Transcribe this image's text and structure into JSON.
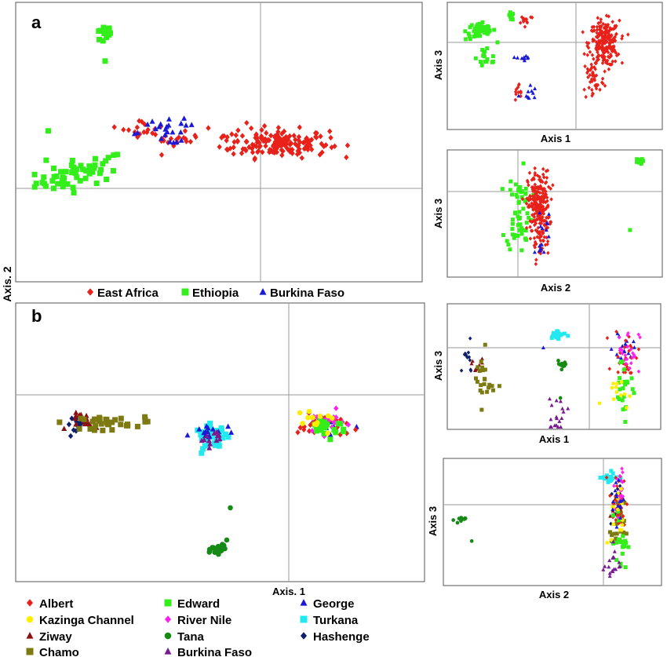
{
  "figure": {
    "panel_a_letter": "a",
    "panel_b_letter": "b",
    "shared_y_label": "Axis. 2",
    "panel_b_x_label": "Axis. 1"
  },
  "legend_a": [
    {
      "label": "East Africa",
      "color": "#e8211a",
      "marker": "diamond"
    },
    {
      "label": "Ethiopia",
      "color": "#33ee1a",
      "marker": "square"
    },
    {
      "label": "Burkina Faso",
      "color": "#1a1ad6",
      "marker": "triangle"
    }
  ],
  "legend_b": [
    {
      "label": "Albert",
      "color": "#e8211a",
      "marker": "diamond"
    },
    {
      "label": "Edward",
      "color": "#33ee1a",
      "marker": "square"
    },
    {
      "label": "George",
      "color": "#1a1ad6",
      "marker": "triangle"
    },
    {
      "label": "Kazinga Channel",
      "color": "#ffee00",
      "marker": "circle"
    },
    {
      "label": "River Nile",
      "color": "#ff22ee",
      "marker": "diamond"
    },
    {
      "label": "Turkana",
      "color": "#22e8f0",
      "marker": "square"
    },
    {
      "label": "Ziway",
      "color": "#8b1010",
      "marker": "triangle"
    },
    {
      "label": "Tana",
      "color": "#158a15",
      "marker": "circle"
    },
    {
      "label": "Hashenge",
      "color": "#0f1f6e",
      "marker": "diamond"
    },
    {
      "label": "Chamo",
      "color": "#7d7a12",
      "marker": "square"
    },
    {
      "label": "Burkina Faso",
      "color": "#7a1a8f",
      "marker": "triangle"
    }
  ],
  "chart_data": [
    {
      "id": "a-main",
      "type": "scatter",
      "xlabel": "",
      "ylabel": "",
      "xlim": [
        -1,
        1
      ],
      "ylim": [
        -1,
        1
      ],
      "series": [
        {
          "name": "Ethiopia",
          "clusters": [
            {
              "cx": -0.68,
              "cy": -0.22,
              "sx": 0.11,
              "sy": 0.05,
              "n": 55,
              "slope": 0.33
            },
            {
              "cx": -0.57,
              "cy": 0.77,
              "sx": 0.02,
              "sy": 0.03,
              "n": 14
            },
            {
              "cx": -0.84,
              "cy": 0.08,
              "sx": 0.01,
              "sy": 0.01,
              "n": 1
            },
            {
              "cx": -0.56,
              "cy": 0.58,
              "sx": 0.01,
              "sy": 0.01,
              "n": 1
            },
            {
              "cx": -0.85,
              "cy": -0.13,
              "sx": 0.01,
              "sy": 0.01,
              "n": 1
            }
          ]
        },
        {
          "name": "East Africa",
          "clusters": [
            {
              "cx": 0.3,
              "cy": -0.01,
              "sx": 0.12,
              "sy": 0.05,
              "n": 170
            },
            {
              "cx": -0.37,
              "cy": 0.1,
              "sx": 0.05,
              "sy": 0.03,
              "n": 16
            },
            {
              "cx": -0.22,
              "cy": 0.01,
              "sx": 0.06,
              "sy": 0.03,
              "n": 18
            },
            {
              "cx": 0.07,
              "cy": 0.05,
              "sx": 0.07,
              "sy": 0.04,
              "n": 14
            }
          ]
        },
        {
          "name": "Burkina Faso",
          "clusters": [
            {
              "cx": -0.27,
              "cy": 0.07,
              "sx": 0.09,
              "sy": 0.04,
              "n": 20
            },
            {
              "cx": -0.19,
              "cy": 0.13,
              "sx": 0.03,
              "sy": 0.02,
              "n": 4
            }
          ]
        }
      ]
    },
    {
      "id": "a-13",
      "type": "scatter",
      "xlabel": "Axis 1",
      "ylabel": "Axis 3",
      "xlim": [
        -1,
        1
      ],
      "ylim": [
        -1,
        1
      ],
      "series": [
        {
          "name": "Ethiopia",
          "clusters": [
            {
              "cx": -0.69,
              "cy": 0.55,
              "sx": 0.07,
              "sy": 0.07,
              "n": 45
            },
            {
              "cx": -0.63,
              "cy": 0.13,
              "sx": 0.05,
              "sy": 0.12,
              "n": 16
            },
            {
              "cx": -0.41,
              "cy": 0.78,
              "sx": 0.02,
              "sy": 0.03,
              "n": 8
            }
          ]
        },
        {
          "name": "East Africa",
          "clusters": [
            {
              "cx": 0.46,
              "cy": 0.35,
              "sx": 0.07,
              "sy": 0.18,
              "n": 230
            },
            {
              "cx": 0.36,
              "cy": -0.2,
              "sx": 0.05,
              "sy": 0.18,
              "n": 40
            },
            {
              "cx": -0.27,
              "cy": 0.73,
              "sx": 0.04,
              "sy": 0.04,
              "n": 12
            },
            {
              "cx": -0.33,
              "cy": -0.42,
              "sx": 0.03,
              "sy": 0.07,
              "n": 12
            }
          ]
        },
        {
          "name": "Burkina Faso",
          "clusters": [
            {
              "cx": -0.29,
              "cy": 0.12,
              "sx": 0.03,
              "sy": 0.06,
              "n": 9
            },
            {
              "cx": -0.25,
              "cy": -0.43,
              "sx": 0.04,
              "sy": 0.07,
              "n": 10
            }
          ]
        }
      ]
    },
    {
      "id": "a-23",
      "type": "scatter",
      "xlabel": "Axis 2",
      "ylabel": "Axis 3",
      "xlim": [
        -1,
        1
      ],
      "ylim": [
        -1,
        1
      ],
      "series": [
        {
          "name": "Ethiopia",
          "clusters": [
            {
              "cx": -0.33,
              "cy": 0.04,
              "sx": 0.06,
              "sy": 0.32,
              "n": 60
            },
            {
              "cx": 0.78,
              "cy": 0.82,
              "sx": 0.02,
              "sy": 0.02,
              "n": 10
            },
            {
              "cx": 0.7,
              "cy": -0.26,
              "sx": 0.01,
              "sy": 0.01,
              "n": 1
            }
          ]
        },
        {
          "name": "East Africa",
          "clusters": [
            {
              "cx": -0.15,
              "cy": 0.12,
              "sx": 0.05,
              "sy": 0.27,
              "n": 240
            },
            {
              "cx": -0.15,
              "cy": -0.48,
              "sx": 0.05,
              "sy": 0.12,
              "n": 20
            }
          ]
        },
        {
          "name": "Burkina Faso",
          "clusters": [
            {
              "cx": -0.09,
              "cy": -0.18,
              "sx": 0.03,
              "sy": 0.12,
              "n": 8
            },
            {
              "cx": -0.12,
              "cy": -0.58,
              "sx": 0.03,
              "sy": 0.06,
              "n": 8
            }
          ]
        }
      ]
    },
    {
      "id": "b-main",
      "type": "scatter",
      "xlabel": "Axis. 1",
      "ylabel": "",
      "xlim": [
        -1,
        1
      ],
      "ylim": [
        -1,
        1
      ],
      "series": [
        {
          "name": "Hashenge",
          "clusters": [
            {
              "cx": -0.69,
              "cy": 0.13,
              "sx": 0.03,
              "sy": 0.03,
              "n": 14
            }
          ]
        },
        {
          "name": "Ziway",
          "clusters": [
            {
              "cx": -0.65,
              "cy": 0.15,
              "sx": 0.04,
              "sy": 0.03,
              "n": 16
            }
          ]
        },
        {
          "name": "Chamo",
          "clusters": [
            {
              "cx": -0.56,
              "cy": 0.14,
              "sx": 0.06,
              "sy": 0.025,
              "n": 30
            },
            {
              "cx": -0.36,
              "cy": 0.16,
              "sx": 0.02,
              "sy": 0.01,
              "n": 4
            }
          ]
        },
        {
          "name": "Turkana",
          "clusters": [
            {
              "cx": -0.04,
              "cy": 0.04,
              "sx": 0.04,
              "sy": 0.04,
              "n": 40
            }
          ]
        },
        {
          "name": "George",
          "clusters": [
            {
              "cx": -0.04,
              "cy": 0.06,
              "sx": 0.05,
              "sy": 0.04,
              "n": 14
            },
            {
              "cx": 0.53,
              "cy": 0.12,
              "sx": 0.05,
              "sy": 0.03,
              "n": 6
            }
          ]
        },
        {
          "name": "Burkina Faso",
          "clusters": [
            {
              "cx": -0.05,
              "cy": 0.03,
              "sx": 0.03,
              "sy": 0.03,
              "n": 12
            }
          ]
        },
        {
          "name": "Albert",
          "clusters": [
            {
              "cx": 0.5,
              "cy": 0.12,
              "sx": 0.06,
              "sy": 0.04,
              "n": 30
            }
          ]
        },
        {
          "name": "River Nile",
          "clusters": [
            {
              "cx": 0.51,
              "cy": 0.14,
              "sx": 0.05,
              "sy": 0.04,
              "n": 25
            }
          ]
        },
        {
          "name": "Edward",
          "clusters": [
            {
              "cx": 0.52,
              "cy": 0.12,
              "sx": 0.05,
              "sy": 0.04,
              "n": 22
            }
          ]
        },
        {
          "name": "Kazinga Channel",
          "clusters": [
            {
              "cx": 0.46,
              "cy": 0.14,
              "sx": 0.06,
              "sy": 0.03,
              "n": 12
            }
          ]
        },
        {
          "name": "Tana",
          "clusters": [
            {
              "cx": 0.0,
              "cy": -0.77,
              "sx": 0.02,
              "sy": 0.03,
              "n": 22
            },
            {
              "cx": 0.05,
              "cy": -0.47,
              "sx": 0.01,
              "sy": 0.01,
              "n": 1
            }
          ]
        }
      ]
    },
    {
      "id": "b-13",
      "type": "scatter",
      "xlabel": "Axis 1",
      "ylabel": "Axis 3",
      "xlim": [
        -1,
        1
      ],
      "ylim": [
        -1,
        1
      ],
      "series": [
        {
          "name": "Hashenge",
          "clusters": [
            {
              "cx": -0.82,
              "cy": 0.1,
              "sx": 0.04,
              "sy": 0.12,
              "n": 12
            }
          ]
        },
        {
          "name": "Ziway",
          "clusters": [
            {
              "cx": -0.74,
              "cy": -0.02,
              "sx": 0.04,
              "sy": 0.08,
              "n": 10
            }
          ]
        },
        {
          "name": "Chamo",
          "clusters": [
            {
              "cx": -0.66,
              "cy": -0.22,
              "sx": 0.05,
              "sy": 0.22,
              "n": 22
            }
          ]
        },
        {
          "name": "Turkana",
          "clusters": [
            {
              "cx": 0.04,
              "cy": 0.5,
              "sx": 0.04,
              "sy": 0.05,
              "n": 20
            }
          ]
        },
        {
          "name": "George",
          "clusters": [
            {
              "cx": 0.65,
              "cy": 0.3,
              "sx": 0.05,
              "sy": 0.12,
              "n": 16
            },
            {
              "cx": -0.1,
              "cy": 0.3,
              "sx": 0.01,
              "sy": 0.01,
              "n": 1
            }
          ]
        },
        {
          "name": "Tana",
          "clusters": [
            {
              "cx": 0.07,
              "cy": 0.02,
              "sx": 0.02,
              "sy": 0.03,
              "n": 12
            },
            {
              "cx": 0.06,
              "cy": -0.5,
              "sx": 0.01,
              "sy": 0.01,
              "n": 1
            }
          ]
        },
        {
          "name": "Burkina Faso",
          "clusters": [
            {
              "cx": 0.02,
              "cy": -0.82,
              "sx": 0.05,
              "sy": 0.18,
              "n": 18
            }
          ]
        },
        {
          "name": "Albert",
          "clusters": [
            {
              "cx": 0.68,
              "cy": 0.2,
              "sx": 0.06,
              "sy": 0.2,
              "n": 28
            }
          ]
        },
        {
          "name": "River Nile",
          "clusters": [
            {
              "cx": 0.7,
              "cy": 0.25,
              "sx": 0.05,
              "sy": 0.18,
              "n": 22
            }
          ]
        },
        {
          "name": "Edward",
          "clusters": [
            {
              "cx": 0.66,
              "cy": -0.3,
              "sx": 0.06,
              "sy": 0.25,
              "n": 24
            }
          ]
        },
        {
          "name": "Kazinga Channel",
          "clusters": [
            {
              "cx": 0.58,
              "cy": -0.4,
              "sx": 0.06,
              "sy": 0.12,
              "n": 12
            }
          ]
        }
      ]
    },
    {
      "id": "b-23",
      "type": "scatter",
      "xlabel": "Axis 2",
      "ylabel": "Axis 3",
      "xlim": [
        -1,
        1
      ],
      "ylim": [
        -1,
        1
      ],
      "series": [
        {
          "name": "Tana",
          "clusters": [
            {
              "cx": -0.85,
              "cy": 0.03,
              "sx": 0.025,
              "sy": 0.025,
              "n": 12
            },
            {
              "cx": -0.74,
              "cy": -0.3,
              "sx": 0.01,
              "sy": 0.01,
              "n": 1
            }
          ]
        },
        {
          "name": "Turkana",
          "clusters": [
            {
              "cx": 0.51,
              "cy": 0.7,
              "sx": 0.04,
              "sy": 0.05,
              "n": 20
            }
          ]
        },
        {
          "name": "Hashenge",
          "clusters": [
            {
              "cx": 0.58,
              "cy": 0.25,
              "sx": 0.03,
              "sy": 0.15,
              "n": 12
            }
          ]
        },
        {
          "name": "Ziway",
          "clusters": [
            {
              "cx": 0.57,
              "cy": 0.15,
              "sx": 0.03,
              "sy": 0.12,
              "n": 10
            }
          ]
        },
        {
          "name": "Chamo",
          "clusters": [
            {
              "cx": 0.6,
              "cy": -0.1,
              "sx": 0.03,
              "sy": 0.2,
              "n": 20
            }
          ]
        },
        {
          "name": "Albert",
          "clusters": [
            {
              "cx": 0.6,
              "cy": 0.3,
              "sx": 0.04,
              "sy": 0.25,
              "n": 28
            }
          ]
        },
        {
          "name": "River Nile",
          "clusters": [
            {
              "cx": 0.62,
              "cy": 0.5,
              "sx": 0.03,
              "sy": 0.2,
              "n": 20
            }
          ]
        },
        {
          "name": "Edward",
          "clusters": [
            {
              "cx": 0.63,
              "cy": -0.3,
              "sx": 0.03,
              "sy": 0.22,
              "n": 22
            }
          ]
        },
        {
          "name": "Kazinga Channel",
          "clusters": [
            {
              "cx": 0.6,
              "cy": 0.05,
              "sx": 0.03,
              "sy": 0.25,
              "n": 14
            }
          ]
        },
        {
          "name": "George",
          "clusters": [
            {
              "cx": 0.6,
              "cy": 0.4,
              "sx": 0.03,
              "sy": 0.2,
              "n": 14
            }
          ]
        },
        {
          "name": "Burkina Faso",
          "clusters": [
            {
              "cx": 0.54,
              "cy": -0.65,
              "sx": 0.04,
              "sy": 0.16,
              "n": 18
            }
          ]
        }
      ]
    }
  ]
}
